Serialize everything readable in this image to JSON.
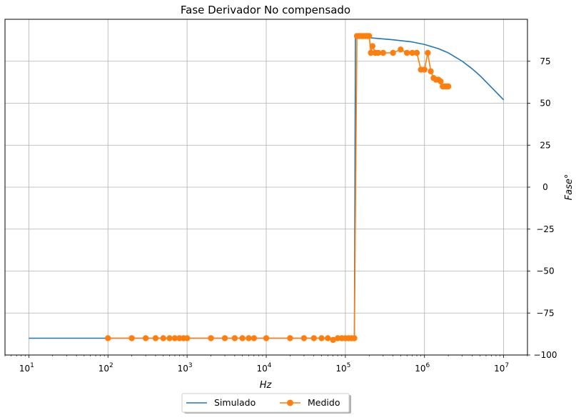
{
  "chart_data": {
    "type": "line",
    "title": "Fase Derivador No compensado",
    "xlabel": "Hz",
    "ylabel": "Fase°",
    "x_scale": "log",
    "xlim": [
      5,
      20000000
    ],
    "ylim": [
      -100,
      100
    ],
    "x_ticks": [
      {
        "base": "10",
        "exp": "1",
        "value": 10
      },
      {
        "base": "10",
        "exp": "2",
        "value": 100
      },
      {
        "base": "10",
        "exp": "3",
        "value": 1000
      },
      {
        "base": "10",
        "exp": "4",
        "value": 10000
      },
      {
        "base": "10",
        "exp": "5",
        "value": 100000
      },
      {
        "base": "10",
        "exp": "6",
        "value": 1000000
      },
      {
        "base": "10",
        "exp": "7",
        "value": 10000000
      }
    ],
    "y_ticks": [
      {
        "label": "75",
        "value": 75
      },
      {
        "label": "50",
        "value": 50
      },
      {
        "label": "25",
        "value": 25
      },
      {
        "label": "0",
        "value": 0
      },
      {
        "label": "−25",
        "value": -25
      },
      {
        "label": "−50",
        "value": -50
      },
      {
        "label": "−75",
        "value": -75
      },
      {
        "label": "−100",
        "value": -100
      }
    ],
    "grid": true,
    "legend_position": "bottom-center",
    "series": [
      {
        "name": "Simulado",
        "color": "#1f77b4",
        "marker": "none",
        "x": [
          10,
          100,
          1000,
          10000,
          100000,
          125000,
          130000,
          132000,
          134000,
          140000,
          200000,
          400000,
          700000,
          1000000,
          1500000,
          2000000,
          3000000,
          4000000,
          5000000,
          7000000,
          10000000
        ],
        "y": [
          -90,
          -90,
          -90,
          -90,
          -90,
          -90,
          -89.5,
          0,
          89.5,
          89.5,
          89,
          87.8,
          86.5,
          85,
          82.5,
          80,
          75,
          70.5,
          66.5,
          59.5,
          52
        ]
      },
      {
        "name": "Medido",
        "color": "#ff7f0e",
        "marker": "circle",
        "x": [
          100,
          200,
          300,
          400,
          500,
          600,
          700,
          800,
          900,
          1000,
          2000,
          3000,
          4000,
          5000,
          6000,
          7000,
          10000,
          20000,
          30000,
          40000,
          50000,
          60000,
          70000,
          80000,
          90000,
          100000,
          110000,
          120000,
          130000,
          140000,
          150000,
          160000,
          170000,
          180000,
          190000,
          200000,
          210000,
          220000,
          240000,
          260000,
          300000,
          400000,
          500000,
          600000,
          700000,
          800000,
          900000,
          1000000,
          1100000,
          1200000,
          1300000,
          1400000,
          1500000,
          1600000,
          1700000,
          1800000,
          1900000,
          2000000
        ],
        "y": [
          -90,
          -90,
          -90,
          -90,
          -90,
          -90,
          -90,
          -90,
          -90,
          -90,
          -90,
          -90,
          -90,
          -90,
          -90,
          -90,
          -90,
          -90,
          -90,
          -90,
          -90,
          -90,
          -91,
          -90,
          -90,
          -90,
          -90,
          -90,
          -90,
          90,
          90,
          90,
          90,
          90,
          90,
          90,
          80,
          84,
          80,
          80,
          80,
          80,
          82,
          80,
          80,
          80,
          70,
          70,
          80,
          69,
          65,
          64,
          64,
          63,
          60,
          60,
          60,
          60
        ]
      }
    ]
  }
}
